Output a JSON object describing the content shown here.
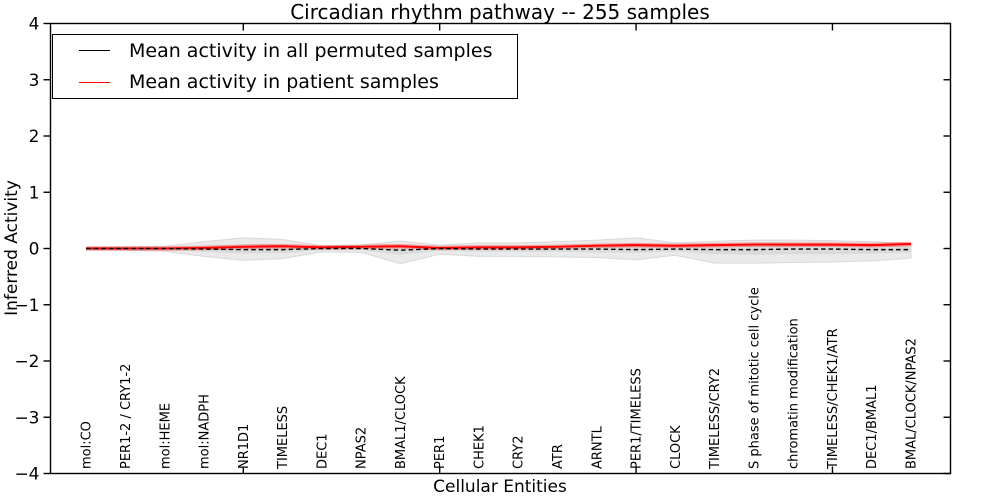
{
  "chart_data": {
    "type": "line",
    "title": "Circadian rhythm pathway -- 255 samples",
    "xlabel": "Cellular Entities",
    "ylabel": "Inferred Activity",
    "ylim": [
      -4,
      4
    ],
    "yticks": [
      -4,
      -3,
      -2,
      -1,
      0,
      1,
      2,
      3,
      4
    ],
    "ytick_labels": [
      "−4",
      "−3",
      "−2",
      "−1",
      "0",
      "1",
      "2",
      "3",
      "4"
    ],
    "x_major_tick_indices": [
      4,
      9,
      14,
      19
    ],
    "grid": false,
    "legend_position": "upper left",
    "background_color": "#ffffff",
    "categories": [
      "mol:CO",
      "PER1-2 / CRY1-2",
      "mol:HEME",
      "mol:NADPH",
      "NR1D1",
      "TIMELESS",
      "DEC1",
      "NPAS2",
      "BMAL1/CLOCK",
      "PER1",
      "CHEK1",
      "CRY2",
      "ATR",
      "ARNTL",
      "PER1/TIMELESS",
      "CLOCK",
      "TIMELESS/CRY2",
      "S phase of mitotic cell cycle",
      "chromatin modification",
      "TIMELESS/CHEK1/ATR",
      "DEC1/BMAL1",
      "BMAL/CLOCK/NPAS2"
    ],
    "series": [
      {
        "name": "Mean activity in all permuted samples",
        "color": "#000000",
        "linestyle": "dashed",
        "values": [
          0,
          0,
          0,
          -0.01,
          -0.02,
          -0.02,
          0,
          0,
          -0.03,
          0,
          -0.01,
          -0.01,
          -0.01,
          -0.01,
          -0.02,
          -0.01,
          -0.02,
          -0.02,
          -0.01,
          -0.01,
          -0.02,
          -0.02
        ]
      },
      {
        "name": "Mean activity in patient samples",
        "color": "#ff0000",
        "linestyle": "solid",
        "values": [
          0.0,
          0.0,
          0.0,
          0.01,
          0.03,
          0.04,
          0.02,
          0.03,
          0.04,
          0.01,
          0.02,
          0.02,
          0.03,
          0.05,
          0.06,
          0.05,
          0.06,
          0.07,
          0.07,
          0.07,
          0.06,
          0.08
        ]
      }
    ],
    "bands": [
      {
        "name": "permuted-range-outer",
        "fill": "#eaeaea",
        "edge": "#d9d9d9",
        "upper": [
          0.02,
          0.03,
          0.04,
          0.12,
          0.19,
          0.16,
          0.05,
          0.06,
          0.13,
          0.06,
          0.1,
          0.1,
          0.12,
          0.15,
          0.19,
          0.1,
          0.13,
          0.15,
          0.15,
          0.14,
          0.12,
          0.09
        ],
        "lower": [
          -0.02,
          -0.03,
          -0.05,
          -0.14,
          -0.21,
          -0.18,
          -0.06,
          -0.07,
          -0.27,
          -0.1,
          -0.14,
          -0.14,
          -0.15,
          -0.16,
          -0.2,
          -0.12,
          -0.26,
          -0.26,
          -0.25,
          -0.24,
          -0.22,
          -0.17
        ]
      },
      {
        "name": "permuted-range-inner",
        "fill": "#dadada",
        "edge": "none",
        "upper": [
          0.01,
          0.01,
          0.02,
          0.05,
          0.08,
          0.07,
          0.02,
          0.03,
          0.05,
          0.02,
          0.04,
          0.04,
          0.05,
          0.06,
          0.08,
          0.04,
          0.05,
          0.06,
          0.06,
          0.06,
          0.05,
          0.04
        ],
        "lower": [
          -0.01,
          -0.01,
          -0.02,
          -0.06,
          -0.09,
          -0.08,
          -0.03,
          -0.03,
          -0.11,
          -0.04,
          -0.06,
          -0.06,
          -0.06,
          -0.07,
          -0.08,
          -0.05,
          -0.1,
          -0.11,
          -0.1,
          -0.1,
          -0.09,
          -0.07
        ]
      },
      {
        "name": "patient-band",
        "fill": "rgba(255,0,0,0.33)",
        "edge": "none",
        "around_series": 1,
        "half_width": 0.04
      }
    ]
  }
}
